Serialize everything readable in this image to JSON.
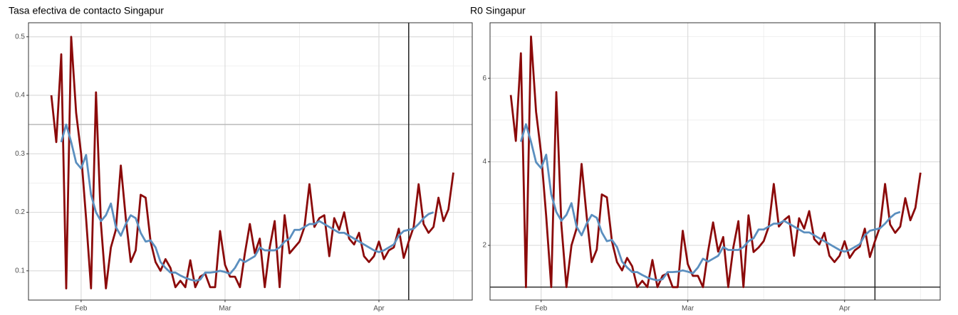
{
  "chart_data": [
    {
      "type": "line",
      "title": "Tasa efectiva de contacto Singapur",
      "x": [
        26,
        27,
        28,
        29,
        30,
        31,
        32,
        33,
        34,
        35,
        36,
        37,
        38,
        39,
        40,
        41,
        42,
        43,
        44,
        45,
        46,
        47,
        48,
        49,
        50,
        51,
        52,
        53,
        54,
        55,
        56,
        57,
        58,
        59,
        60,
        61,
        62,
        63,
        64,
        65,
        66,
        67,
        68,
        69,
        70,
        71,
        72,
        73,
        74,
        75,
        76,
        77,
        78,
        79,
        80,
        81,
        82,
        83,
        84,
        85,
        86,
        87,
        88,
        89,
        90,
        91,
        92,
        93,
        94,
        95,
        96,
        97,
        98,
        99,
        100,
        101,
        102,
        103,
        104,
        105,
        106,
        107
      ],
      "series": [
        {
          "color": "#8b0a0a",
          "values": [
            0.4,
            0.32,
            0.47,
            0.07,
            0.5,
            0.37,
            0.3,
            0.19,
            0.07,
            0.405,
            0.18,
            0.07,
            0.14,
            0.17,
            0.28,
            0.19,
            0.115,
            0.135,
            0.23,
            0.225,
            0.15,
            0.115,
            0.1,
            0.12,
            0.105,
            0.072,
            0.083,
            0.072,
            0.118,
            0.072,
            0.09,
            0.095,
            0.072,
            0.072,
            0.168,
            0.11,
            0.09,
            0.09,
            0.072,
            0.13,
            0.18,
            0.13,
            0.155,
            0.072,
            0.14,
            0.185,
            0.072,
            0.195,
            0.13,
            0.14,
            0.15,
            0.175,
            0.248,
            0.175,
            0.19,
            0.195,
            0.125,
            0.19,
            0.17,
            0.2,
            0.155,
            0.145,
            0.165,
            0.125,
            0.115,
            0.125,
            0.15,
            0.12,
            0.135,
            0.14,
            0.172,
            0.122,
            0.15,
            0.175,
            0.248,
            0.18,
            0.165,
            0.175,
            0.225,
            0.185,
            0.205,
            0.268
          ]
        },
        {
          "color": "#5b8fbf",
          "values": [
            null,
            null,
            0.32,
            0.35,
            0.32,
            0.285,
            0.275,
            0.298,
            0.23,
            0.2,
            0.185,
            0.195,
            0.215,
            0.175,
            0.16,
            0.18,
            0.195,
            0.19,
            0.165,
            0.15,
            0.152,
            0.14,
            0.115,
            0.105,
            0.097,
            0.097,
            0.092,
            0.088,
            0.085,
            0.083,
            0.085,
            0.097,
            0.097,
            0.098,
            0.1,
            0.098,
            0.095,
            0.105,
            0.12,
            0.115,
            0.12,
            0.125,
            0.14,
            0.135,
            0.135,
            0.135,
            0.14,
            0.15,
            0.155,
            0.17,
            0.17,
            0.175,
            0.18,
            0.18,
            0.185,
            0.18,
            0.175,
            0.17,
            0.165,
            0.165,
            0.16,
            0.155,
            0.15,
            0.145,
            0.14,
            0.135,
            0.132,
            0.135,
            0.14,
            0.145,
            0.16,
            0.168,
            0.17,
            0.172,
            0.18,
            0.19,
            0.197,
            0.2,
            null,
            null,
            null,
            null
          ]
        }
      ],
      "xlim": [
        21.4,
        110.8
      ],
      "xticks": [
        {
          "value": 32,
          "label": "Feb"
        },
        {
          "value": 61,
          "label": "Mar"
        },
        {
          "value": 92,
          "label": "Apr"
        }
      ],
      "xminor": [
        46,
        76,
        107
      ],
      "ylim": [
        0.05,
        0.524
      ],
      "yticks": [
        0.1,
        0.2,
        0.3,
        0.4,
        0.5
      ],
      "yminor": [
        0.15,
        0.25,
        0.35,
        0.45
      ],
      "hline": 0.35,
      "vline": 98,
      "grid": true
    },
    {
      "type": "line",
      "title": "R0 Singapur",
      "x": [
        26,
        27,
        28,
        29,
        30,
        31,
        32,
        33,
        34,
        35,
        36,
        37,
        38,
        39,
        40,
        41,
        42,
        43,
        44,
        45,
        46,
        47,
        48,
        49,
        50,
        51,
        52,
        53,
        54,
        55,
        56,
        57,
        58,
        59,
        60,
        61,
        62,
        63,
        64,
        65,
        66,
        67,
        68,
        69,
        70,
        71,
        72,
        73,
        74,
        75,
        76,
        77,
        78,
        79,
        80,
        81,
        82,
        83,
        84,
        85,
        86,
        87,
        88,
        89,
        90,
        91,
        92,
        93,
        94,
        95,
        96,
        97,
        98,
        99,
        100,
        101,
        102,
        103,
        104,
        105,
        106,
        107
      ],
      "series": [
        {
          "color": "#8b0a0a",
          "values": [
            5.6,
            4.5,
            6.6,
            1.0,
            7.0,
            5.2,
            4.2,
            2.7,
            1.0,
            5.67,
            2.5,
            1.0,
            2.0,
            2.4,
            3.95,
            2.7,
            1.6,
            1.9,
            3.22,
            3.15,
            2.1,
            1.6,
            1.4,
            1.7,
            1.5,
            1.0,
            1.15,
            1.0,
            1.65,
            1.0,
            1.27,
            1.33,
            1.0,
            1.0,
            2.35,
            1.55,
            1.27,
            1.27,
            1.0,
            1.85,
            2.55,
            1.85,
            2.2,
            1.0,
            1.95,
            2.58,
            1.0,
            2.72,
            1.84,
            1.95,
            2.1,
            2.45,
            3.47,
            2.45,
            2.6,
            2.7,
            1.75,
            2.65,
            2.4,
            2.82,
            2.15,
            2.02,
            2.3,
            1.75,
            1.6,
            1.75,
            2.1,
            1.7,
            1.88,
            1.97,
            2.4,
            1.72,
            2.1,
            2.45,
            3.47,
            2.5,
            2.3,
            2.45,
            3.13,
            2.6,
            2.9,
            3.74
          ]
        },
        {
          "color": "#5b8fbf",
          "values": [
            null,
            null,
            4.48,
            4.9,
            4.48,
            3.99,
            3.85,
            4.17,
            3.22,
            2.8,
            2.59,
            2.73,
            3.01,
            2.45,
            2.24,
            2.52,
            2.73,
            2.66,
            2.31,
            2.1,
            2.13,
            1.96,
            1.61,
            1.47,
            1.36,
            1.36,
            1.29,
            1.23,
            1.19,
            1.16,
            1.19,
            1.36,
            1.36,
            1.37,
            1.4,
            1.37,
            1.33,
            1.47,
            1.68,
            1.61,
            1.68,
            1.75,
            1.96,
            1.89,
            1.89,
            1.89,
            1.96,
            2.1,
            2.17,
            2.38,
            2.38,
            2.45,
            2.52,
            2.52,
            2.59,
            2.52,
            2.45,
            2.38,
            2.31,
            2.31,
            2.24,
            2.17,
            2.1,
            2.03,
            1.96,
            1.89,
            1.85,
            1.89,
            1.96,
            2.03,
            2.24,
            2.35,
            2.38,
            2.41,
            2.52,
            2.66,
            2.76,
            2.8,
            null,
            null,
            null,
            null
          ]
        }
      ],
      "xlim": [
        21.9,
        110.9
      ],
      "xticks": [
        {
          "value": 32,
          "label": "Feb"
        },
        {
          "value": 61,
          "label": "Mar"
        },
        {
          "value": 92,
          "label": "Apr"
        }
      ],
      "xminor": [
        46,
        76,
        107
      ],
      "ylim": [
        0.69,
        7.33
      ],
      "yticks": [
        2,
        4,
        6
      ],
      "yminor": [
        1,
        3,
        5,
        7
      ],
      "hline": 1,
      "vline": 98,
      "grid": true
    }
  ]
}
